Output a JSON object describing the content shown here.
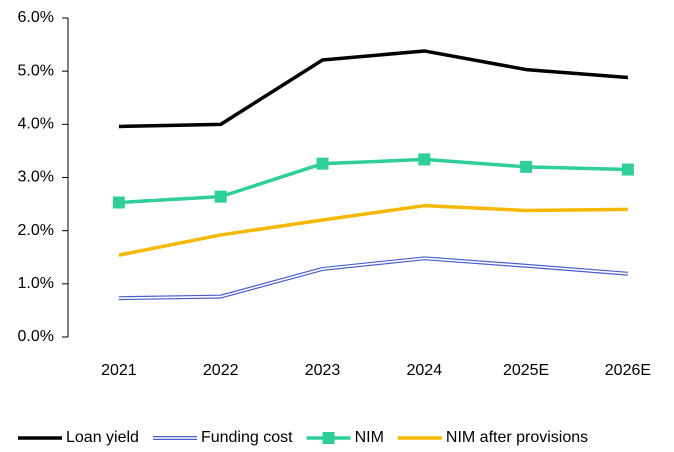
{
  "chart_data": {
    "type": "line",
    "categories": [
      "2021",
      "2022",
      "2023",
      "2024",
      "2025E",
      "2026E"
    ],
    "series": [
      {
        "name": "Loan yield",
        "color": "#000000",
        "values": [
          3.96,
          4.0,
          5.21,
          5.38,
          5.03,
          4.88
        ]
      },
      {
        "name": "Funding cost",
        "color": "#4a5fcf",
        "values": [
          0.73,
          0.76,
          1.28,
          1.48,
          1.34,
          1.19
        ]
      },
      {
        "name": "NIM",
        "color": "#2fcf97",
        "marker": "square",
        "values": [
          2.53,
          2.64,
          3.26,
          3.34,
          3.2,
          3.15
        ]
      },
      {
        "name": "NIM after provisions",
        "color": "#f5b800",
        "values": [
          1.54,
          1.92,
          2.2,
          2.47,
          2.38,
          2.4
        ]
      }
    ],
    "ylim": [
      0,
      6
    ],
    "yticks": [
      {
        "value": 0,
        "label": "0.0%"
      },
      {
        "value": 1,
        "label": "1.0%"
      },
      {
        "value": 2,
        "label": "2.0%"
      },
      {
        "value": 3,
        "label": "3.0%"
      },
      {
        "value": 4,
        "label": "4.0%"
      },
      {
        "value": 5,
        "label": "5.0%"
      },
      {
        "value": 6,
        "label": "6.0%"
      }
    ],
    "grid": false,
    "legend": "bottom"
  }
}
